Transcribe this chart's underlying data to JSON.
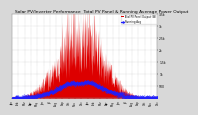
{
  "title": "Solar PV/Inverter Performance  Total PV Panel & Running Average Power Output",
  "title_fontsize": 3.2,
  "bg_color": "#d8d8d8",
  "plot_bg_color": "#ffffff",
  "red_color": "#dd0000",
  "blue_color": "#2020ff",
  "grid_color": "#aaaaaa",
  "ylim": [
    0,
    3500
  ],
  "yticks": [
    500,
    1000,
    1500,
    2000,
    2500,
    3000,
    3500
  ],
  "ytick_labels": [
    "500",
    "1k",
    "1.5k",
    "2k",
    "2.5k",
    "3k",
    "3.5k"
  ],
  "n_points": 730,
  "peak_day": 344,
  "peak_power": 3400,
  "avg_level": 550,
  "legend_items": [
    "Total PV Panel Output (W)",
    "Running Avg"
  ],
  "legend_colors": [
    "#dd0000",
    "#2020ff"
  ]
}
